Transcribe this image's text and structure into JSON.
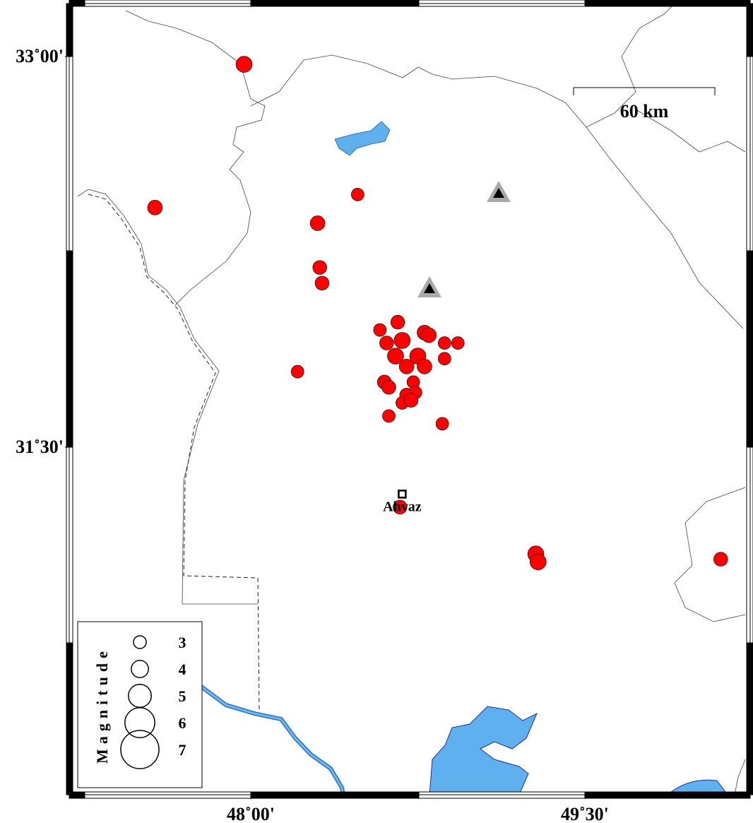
{
  "map": {
    "lon_ticks": [
      {
        "value": 48,
        "label": "48˚00'"
      },
      {
        "value": 49.5,
        "label": "49˚30'"
      }
    ],
    "lat_ticks": [
      {
        "value": 33,
        "label": "33˚00'"
      },
      {
        "value": 31.5,
        "label": "31˚30'"
      }
    ],
    "scale_bar": "60 km",
    "city": {
      "label": "Ahvaz",
      "lon": 48.68,
      "lat": 31.32
    },
    "legend": {
      "title": "Magnitude",
      "magnitudes": [
        3,
        4,
        5,
        6,
        7
      ]
    },
    "events": [
      {
        "lon": 47.97,
        "lat": 32.97,
        "mag": 3.8
      },
      {
        "lon": 47.57,
        "lat": 32.42,
        "mag": 3.5
      },
      {
        "lon": 48.48,
        "lat": 32.47,
        "mag": 3.0
      },
      {
        "lon": 48.3,
        "lat": 32.36,
        "mag": 3.5
      },
      {
        "lon": 48.31,
        "lat": 32.19,
        "mag": 3.3
      },
      {
        "lon": 48.32,
        "lat": 32.13,
        "mag": 3.3
      },
      {
        "lon": 48.21,
        "lat": 31.79,
        "mag": 3.0
      },
      {
        "lon": 48.66,
        "lat": 31.98,
        "mag": 3.3
      },
      {
        "lon": 48.58,
        "lat": 31.95,
        "mag": 3.0
      },
      {
        "lon": 48.78,
        "lat": 31.94,
        "mag": 3.5
      },
      {
        "lon": 48.8,
        "lat": 31.93,
        "mag": 3.5
      },
      {
        "lon": 48.61,
        "lat": 31.9,
        "mag": 3.3
      },
      {
        "lon": 48.68,
        "lat": 31.91,
        "mag": 3.8
      },
      {
        "lon": 48.87,
        "lat": 31.9,
        "mag": 3.0
      },
      {
        "lon": 48.93,
        "lat": 31.9,
        "mag": 3.0
      },
      {
        "lon": 48.65,
        "lat": 31.85,
        "mag": 3.8
      },
      {
        "lon": 48.75,
        "lat": 31.85,
        "mag": 3.8
      },
      {
        "lon": 48.87,
        "lat": 31.84,
        "mag": 3.0
      },
      {
        "lon": 48.7,
        "lat": 31.81,
        "mag": 3.5
      },
      {
        "lon": 48.78,
        "lat": 31.81,
        "mag": 3.5
      },
      {
        "lon": 48.6,
        "lat": 31.75,
        "mag": 3.3
      },
      {
        "lon": 48.62,
        "lat": 31.73,
        "mag": 3.3
      },
      {
        "lon": 48.73,
        "lat": 31.75,
        "mag": 3.0
      },
      {
        "lon": 48.7,
        "lat": 31.7,
        "mag": 3.3
      },
      {
        "lon": 48.74,
        "lat": 31.71,
        "mag": 3.0
      },
      {
        "lon": 48.68,
        "lat": 31.67,
        "mag": 3.0
      },
      {
        "lon": 48.72,
        "lat": 31.68,
        "mag": 3.3
      },
      {
        "lon": 48.62,
        "lat": 31.62,
        "mag": 3.0
      },
      {
        "lon": 48.86,
        "lat": 31.59,
        "mag": 3.0
      },
      {
        "lon": 48.67,
        "lat": 31.27,
        "mag": 3.3
      },
      {
        "lon": 49.28,
        "lat": 31.09,
        "mag": 3.8
      },
      {
        "lon": 49.29,
        "lat": 31.06,
        "mag": 3.8
      },
      {
        "lon": 50.11,
        "lat": 31.07,
        "mag": 3.3
      }
    ]
  }
}
